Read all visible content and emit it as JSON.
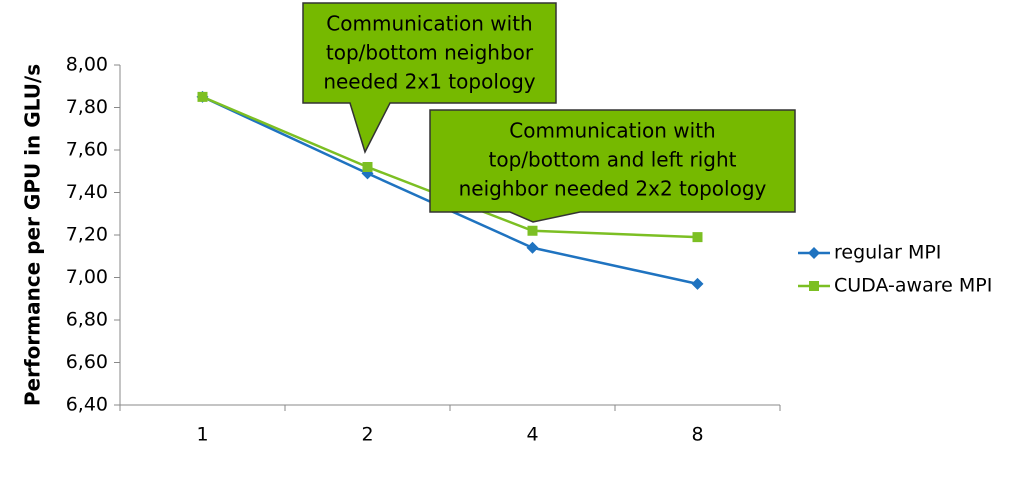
{
  "chart_data": {
    "type": "line",
    "y_label": "Performance per GPU in GLU/s",
    "categories": [
      "1",
      "2",
      "4",
      "8"
    ],
    "series": [
      {
        "name": "regular MPI",
        "color": "#1f73c0",
        "marker": "diamond",
        "values": [
          7.85,
          7.49,
          7.14,
          6.97
        ]
      },
      {
        "name": "CUDA-aware MPI",
        "color": "#7cbf23",
        "marker": "square",
        "values": [
          7.85,
          7.52,
          7.22,
          7.19
        ]
      }
    ],
    "ylim": [
      6.4,
      8.0
    ],
    "yticks": [
      {
        "value": 6.4,
        "label": "6,40"
      },
      {
        "value": 6.6,
        "label": "6,60"
      },
      {
        "value": 6.8,
        "label": "6,80"
      },
      {
        "value": 7.0,
        "label": "7,00"
      },
      {
        "value": 7.2,
        "label": "7,20"
      },
      {
        "value": 7.4,
        "label": "7,40"
      },
      {
        "value": 7.6,
        "label": "7,60"
      },
      {
        "value": 7.8,
        "label": "7,80"
      },
      {
        "value": 8.0,
        "label": "8,00"
      }
    ],
    "grid": false,
    "legend": "right",
    "annotations": [
      {
        "lines": [
          "Communication with",
          "top/bottom neighbor",
          "needed 2x1 topology"
        ],
        "color": "#76b900"
      },
      {
        "lines": [
          "Communication with",
          "top/bottom and left right",
          "neighbor needed 2x2 topology"
        ],
        "color": "#76b900"
      }
    ]
  }
}
